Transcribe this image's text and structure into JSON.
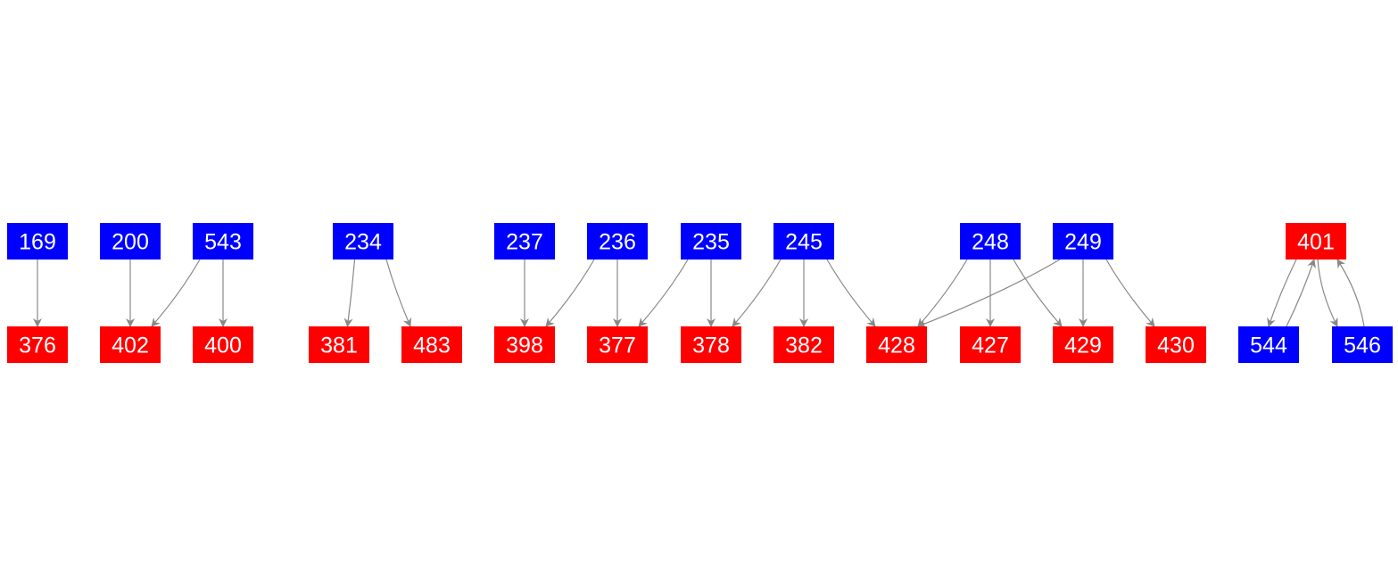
{
  "colors": {
    "source": "#0000ff",
    "target": "#ff0000",
    "edge": "#888888",
    "text": "#ffffff"
  },
  "nodes": [
    {
      "id": "169",
      "kind": "source"
    },
    {
      "id": "200",
      "kind": "source"
    },
    {
      "id": "543",
      "kind": "source"
    },
    {
      "id": "234",
      "kind": "source"
    },
    {
      "id": "237",
      "kind": "source"
    },
    {
      "id": "236",
      "kind": "source"
    },
    {
      "id": "235",
      "kind": "source"
    },
    {
      "id": "245",
      "kind": "source"
    },
    {
      "id": "248",
      "kind": "source"
    },
    {
      "id": "249",
      "kind": "source"
    },
    {
      "id": "401",
      "kind": "target"
    },
    {
      "id": "376",
      "kind": "target"
    },
    {
      "id": "402",
      "kind": "target"
    },
    {
      "id": "400",
      "kind": "target"
    },
    {
      "id": "381",
      "kind": "target"
    },
    {
      "id": "483",
      "kind": "target"
    },
    {
      "id": "398",
      "kind": "target"
    },
    {
      "id": "377",
      "kind": "target"
    },
    {
      "id": "378",
      "kind": "target"
    },
    {
      "id": "382",
      "kind": "target"
    },
    {
      "id": "428",
      "kind": "target"
    },
    {
      "id": "427",
      "kind": "target"
    },
    {
      "id": "429",
      "kind": "target"
    },
    {
      "id": "430",
      "kind": "target"
    },
    {
      "id": "544",
      "kind": "source"
    },
    {
      "id": "546",
      "kind": "source"
    }
  ],
  "edges": [
    [
      "169",
      "376"
    ],
    [
      "200",
      "402"
    ],
    [
      "543",
      "402"
    ],
    [
      "543",
      "400"
    ],
    [
      "234",
      "381"
    ],
    [
      "234",
      "483"
    ],
    [
      "237",
      "398"
    ],
    [
      "236",
      "398"
    ],
    [
      "236",
      "377"
    ],
    [
      "235",
      "377"
    ],
    [
      "235",
      "378"
    ],
    [
      "245",
      "378"
    ],
    [
      "245",
      "382"
    ],
    [
      "245",
      "428"
    ],
    [
      "248",
      "428"
    ],
    [
      "248",
      "427"
    ],
    [
      "248",
      "429"
    ],
    [
      "249",
      "428"
    ],
    [
      "249",
      "429"
    ],
    [
      "249",
      "430"
    ],
    [
      "401",
      "544"
    ],
    [
      "544",
      "401"
    ],
    [
      "401",
      "546"
    ],
    [
      "546",
      "401"
    ]
  ]
}
